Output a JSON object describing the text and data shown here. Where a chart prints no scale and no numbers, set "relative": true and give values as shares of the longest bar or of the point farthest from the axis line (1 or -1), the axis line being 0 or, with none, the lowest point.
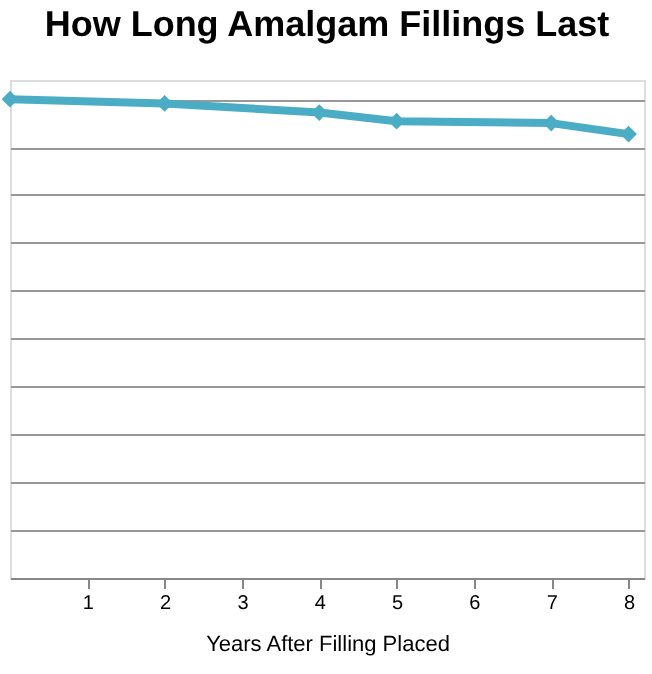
{
  "chart_data": {
    "type": "line",
    "title": "How Long Amalgam Fillings Last",
    "xlabel": "Years After Filling Placed",
    "x": [
      0,
      2,
      4,
      5,
      7,
      8
    ],
    "xlim": [
      0,
      8.2
    ],
    "xticks": [
      1,
      2,
      3,
      4,
      5,
      6,
      7,
      8
    ],
    "series": [
      {
        "color": "#4bacc6",
        "values": [
          1,
          0.991,
          0.972,
          0.954,
          0.95,
          0.927
        ]
      }
    ],
    "relative": true,
    "grid": "y",
    "marker": "diamond",
    "line_style": "solid"
  }
}
